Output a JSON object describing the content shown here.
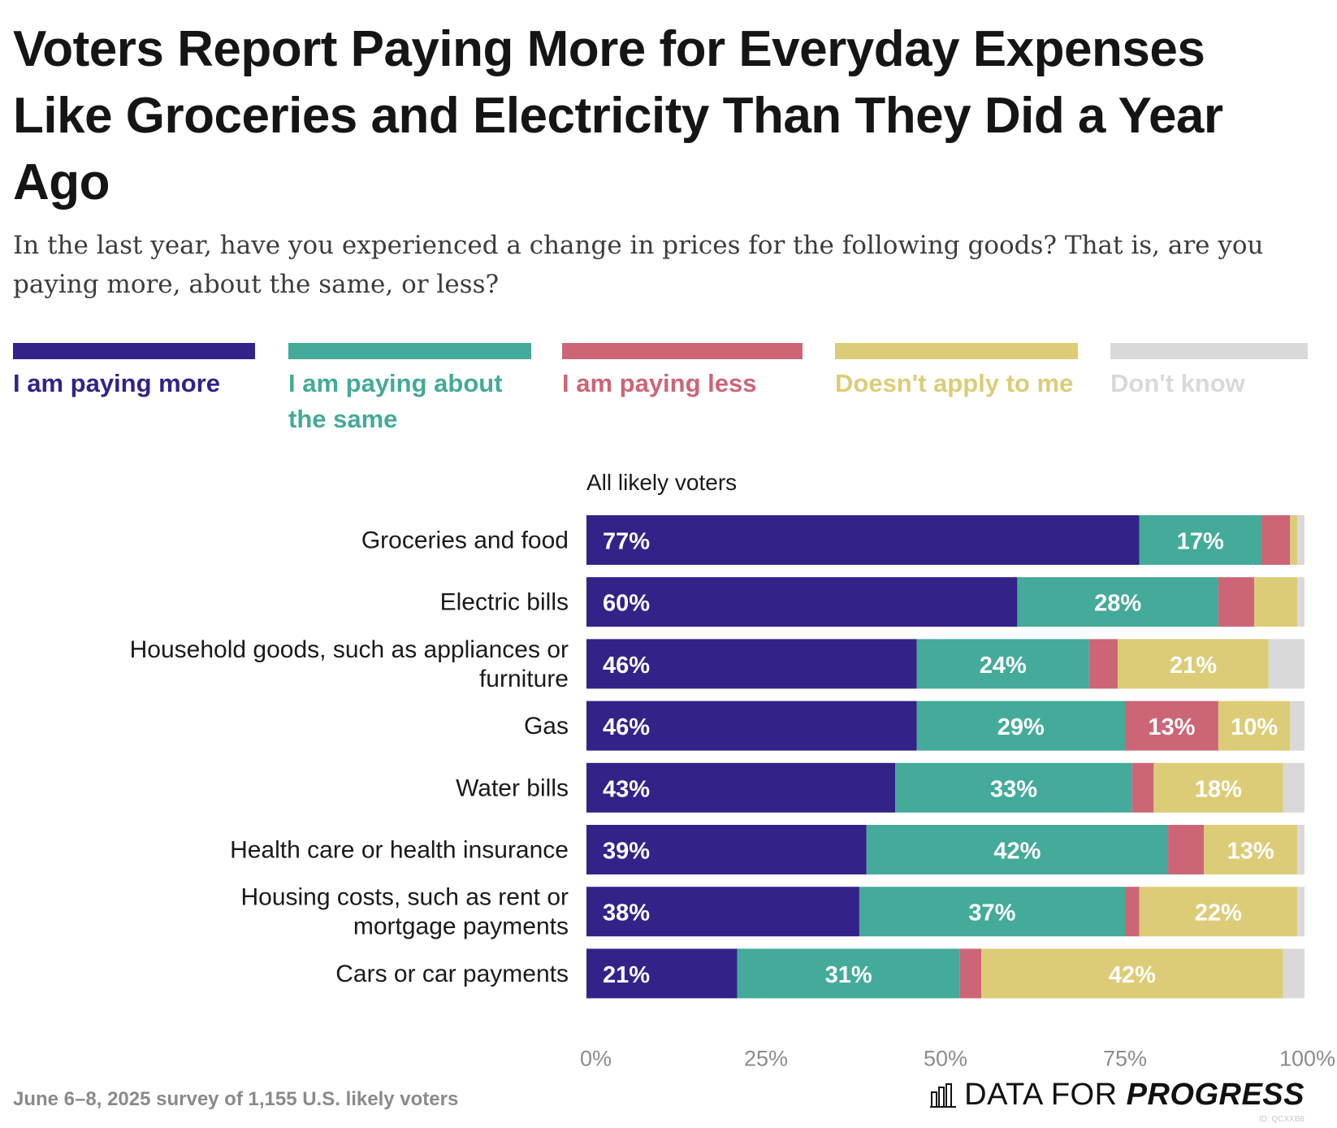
{
  "title": "Voters Report Paying More for Everyday Expenses Like Groceries and Electricity Than They Did a Year Ago",
  "subtitle": "In the last year, have you experienced a change in prices for the following goods? That is, are you paying more, about the same, or less?",
  "group_label": "All likely voters",
  "legend": [
    {
      "label": "I am paying more",
      "color": "#332288"
    },
    {
      "label": "I am paying about the same",
      "color": "#44aa99"
    },
    {
      "label": "I am paying less",
      "color": "#cc6677"
    },
    {
      "label": "Doesn't apply to me",
      "color": "#ddcc77"
    },
    {
      "label": "Don't know",
      "color": "#d9d9d9"
    }
  ],
  "chart_data": {
    "type": "bar",
    "orientation": "horizontal",
    "stacked": true,
    "title": "Voters Report Paying More for Everyday Expenses Like Groceries and Electricity Than They Did a Year Ago",
    "xlabel": "",
    "ylabel": "",
    "xlim": [
      0,
      100
    ],
    "x_ticks": [
      "0%",
      "25%",
      "50%",
      "75%",
      "100%"
    ],
    "categories": [
      "Groceries and food",
      "Electric bills",
      "Household goods, such as appliances or furniture",
      "Gas",
      "Water bills",
      "Health care or health insurance",
      "Housing costs, such as rent or mortgage payments",
      "Cars or car payments"
    ],
    "series": [
      {
        "name": "I am paying more",
        "color": "#332288",
        "values": [
          77,
          60,
          46,
          46,
          43,
          39,
          38,
          21
        ]
      },
      {
        "name": "I am paying about the same",
        "color": "#44aa99",
        "values": [
          17,
          28,
          24,
          29,
          33,
          42,
          37,
          31
        ]
      },
      {
        "name": "I am paying less",
        "color": "#cc6677",
        "values": [
          4,
          5,
          4,
          13,
          3,
          5,
          2,
          3
        ]
      },
      {
        "name": "Doesn't apply to me",
        "color": "#ddcc77",
        "values": [
          1,
          6,
          21,
          10,
          18,
          13,
          22,
          42
        ]
      },
      {
        "name": "Don't know",
        "color": "#d9d9d9",
        "values": [
          1,
          1,
          5,
          2,
          3,
          1,
          1,
          3
        ]
      }
    ],
    "shown_labels": [
      [
        "77%",
        "17%",
        "",
        "",
        ""
      ],
      [
        "60%",
        "28%",
        "",
        "",
        ""
      ],
      [
        "46%",
        "24%",
        "",
        "21%",
        ""
      ],
      [
        "46%",
        "29%",
        "13%",
        "10%",
        ""
      ],
      [
        "43%",
        "33%",
        "",
        "18%",
        ""
      ],
      [
        "39%",
        "42%",
        "",
        "13%",
        ""
      ],
      [
        "38%",
        "37%",
        "",
        "22%",
        ""
      ],
      [
        "21%",
        "31%",
        "",
        "42%",
        ""
      ]
    ]
  },
  "footer": {
    "source": "June 6–8, 2025 survey of 1,155 U.S. likely voters",
    "brand_regular": "DATA FOR ",
    "brand_bold": "PROGRESS",
    "image_id": "ID: QCXXB8"
  }
}
